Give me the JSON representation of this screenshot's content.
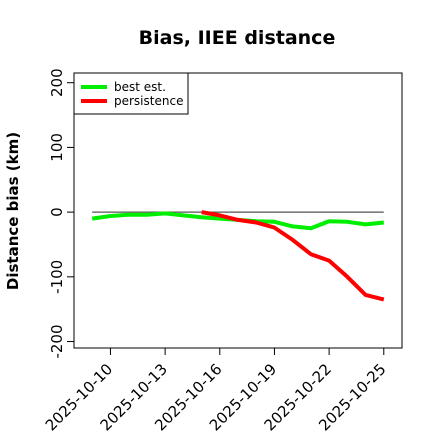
{
  "chart_data": {
    "type": "line",
    "title": "Bias, IIEE distance",
    "xlabel": "",
    "ylabel": "Distance bias (km)",
    "ylim": [
      -210,
      215
    ],
    "yticks": [
      -200,
      -100,
      0,
      100,
      200
    ],
    "xlim": [
      "2025-10-08",
      "2025-10-26"
    ],
    "xticks": [
      "2025-10-10",
      "2025-10-13",
      "2025-10-16",
      "2025-10-19",
      "2025-10-22",
      "2025-10-25"
    ],
    "reference_line": 0,
    "grid": false,
    "legend_position": "top-left",
    "series": [
      {
        "name": "best est.",
        "color": "#00ee00",
        "x": [
          "2025-10-09",
          "2025-10-10",
          "2025-10-11",
          "2025-10-12",
          "2025-10-13",
          "2025-10-14",
          "2025-10-15",
          "2025-10-16",
          "2025-10-17",
          "2025-10-18",
          "2025-10-19",
          "2025-10-20",
          "2025-10-21",
          "2025-10-22",
          "2025-10-23",
          "2025-10-24",
          "2025-10-25"
        ],
        "y": [
          -10,
          -6,
          -4,
          -4,
          -2,
          -5,
          -8,
          -10,
          -12,
          -14,
          -15,
          -22,
          -25,
          -14,
          -15,
          -19,
          -16
        ]
      },
      {
        "name": "persistence",
        "color": "#ff0000",
        "x": [
          "2025-10-15",
          "2025-10-16",
          "2025-10-17",
          "2025-10-18",
          "2025-10-19",
          "2025-10-20",
          "2025-10-21",
          "2025-10-22",
          "2025-10-23",
          "2025-10-24",
          "2025-10-25"
        ],
        "y": [
          0,
          -5,
          -12,
          -16,
          -24,
          -43,
          -65,
          -75,
          -100,
          -128,
          -135
        ]
      }
    ]
  }
}
